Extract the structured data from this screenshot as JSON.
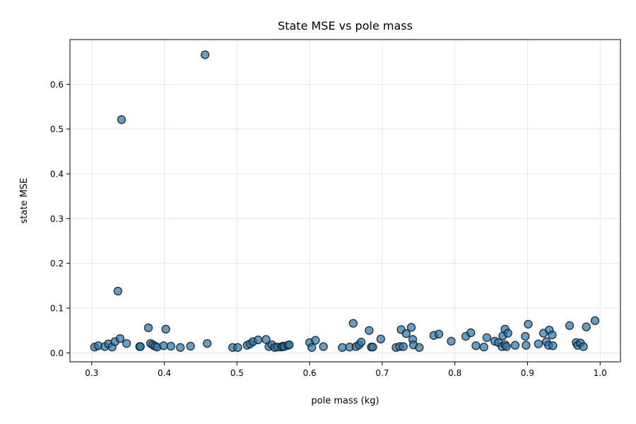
{
  "chart_data": {
    "type": "scatter",
    "title": "State MSE vs pole mass",
    "xlabel": "pole mass (kg)",
    "ylabel": "state MSE",
    "xlim": [
      0.27,
      1.028
    ],
    "ylim": [
      -0.02,
      0.7
    ],
    "xticks": [
      "0.3",
      "0.4",
      "0.5",
      "0.6",
      "0.7",
      "0.8",
      "0.9",
      "1.0"
    ],
    "yticks": [
      "0.0",
      "0.1",
      "0.2",
      "0.3",
      "0.4",
      "0.5",
      "0.6"
    ],
    "grid": true,
    "marker_color": "#1f77b4",
    "marker_edge_color": "#1a1a1a",
    "marker_alpha": 0.7,
    "points": [
      [
        0.304,
        0.013
      ],
      [
        0.309,
        0.016
      ],
      [
        0.318,
        0.014
      ],
      [
        0.323,
        0.02
      ],
      [
        0.328,
        0.013
      ],
      [
        0.332,
        0.025
      ],
      [
        0.336,
        0.138
      ],
      [
        0.339,
        0.032
      ],
      [
        0.341,
        0.521
      ],
      [
        0.348,
        0.021
      ],
      [
        0.366,
        0.014
      ],
      [
        0.367,
        0.014
      ],
      [
        0.378,
        0.056
      ],
      [
        0.381,
        0.021
      ],
      [
        0.384,
        0.018
      ],
      [
        0.387,
        0.015
      ],
      [
        0.39,
        0.013
      ],
      [
        0.399,
        0.016
      ],
      [
        0.402,
        0.053
      ],
      [
        0.409,
        0.015
      ],
      [
        0.422,
        0.012
      ],
      [
        0.436,
        0.015
      ],
      [
        0.456,
        0.666
      ],
      [
        0.459,
        0.021
      ],
      [
        0.494,
        0.012
      ],
      [
        0.501,
        0.012
      ],
      [
        0.514,
        0.017
      ],
      [
        0.518,
        0.02
      ],
      [
        0.522,
        0.025
      ],
      [
        0.529,
        0.029
      ],
      [
        0.54,
        0.03
      ],
      [
        0.544,
        0.014
      ],
      [
        0.548,
        0.018
      ],
      [
        0.552,
        0.012
      ],
      [
        0.556,
        0.013
      ],
      [
        0.561,
        0.013
      ],
      [
        0.563,
        0.015
      ],
      [
        0.565,
        0.014
      ],
      [
        0.57,
        0.017
      ],
      [
        0.572,
        0.018
      ],
      [
        0.6,
        0.023
      ],
      [
        0.603,
        0.012
      ],
      [
        0.608,
        0.028
      ],
      [
        0.619,
        0.014
      ],
      [
        0.645,
        0.012
      ],
      [
        0.655,
        0.013
      ],
      [
        0.66,
        0.066
      ],
      [
        0.664,
        0.014
      ],
      [
        0.668,
        0.018
      ],
      [
        0.671,
        0.024
      ],
      [
        0.682,
        0.05
      ],
      [
        0.685,
        0.013
      ],
      [
        0.687,
        0.013
      ],
      [
        0.698,
        0.031
      ],
      [
        0.719,
        0.012
      ],
      [
        0.724,
        0.014
      ],
      [
        0.726,
        0.052
      ],
      [
        0.729,
        0.014
      ],
      [
        0.733,
        0.043
      ],
      [
        0.74,
        0.057
      ],
      [
        0.742,
        0.03
      ],
      [
        0.743,
        0.018
      ],
      [
        0.751,
        0.012
      ],
      [
        0.771,
        0.039
      ],
      [
        0.778,
        0.042
      ],
      [
        0.795,
        0.026
      ],
      [
        0.815,
        0.037
      ],
      [
        0.822,
        0.045
      ],
      [
        0.829,
        0.016
      ],
      [
        0.84,
        0.013
      ],
      [
        0.844,
        0.034
      ],
      [
        0.855,
        0.026
      ],
      [
        0.86,
        0.023
      ],
      [
        0.865,
        0.014
      ],
      [
        0.866,
        0.038
      ],
      [
        0.869,
        0.053
      ],
      [
        0.869,
        0.018
      ],
      [
        0.871,
        0.014
      ],
      [
        0.873,
        0.044
      ],
      [
        0.883,
        0.017
      ],
      [
        0.897,
        0.037
      ],
      [
        0.898,
        0.017
      ],
      [
        0.901,
        0.064
      ],
      [
        0.915,
        0.02
      ],
      [
        0.922,
        0.044
      ],
      [
        0.926,
        0.025
      ],
      [
        0.929,
        0.017
      ],
      [
        0.93,
        0.051
      ],
      [
        0.934,
        0.04
      ],
      [
        0.935,
        0.016
      ],
      [
        0.958,
        0.061
      ],
      [
        0.967,
        0.023
      ],
      [
        0.969,
        0.017
      ],
      [
        0.973,
        0.022
      ],
      [
        0.977,
        0.014
      ],
      [
        0.981,
        0.058
      ],
      [
        0.993,
        0.072
      ]
    ]
  }
}
